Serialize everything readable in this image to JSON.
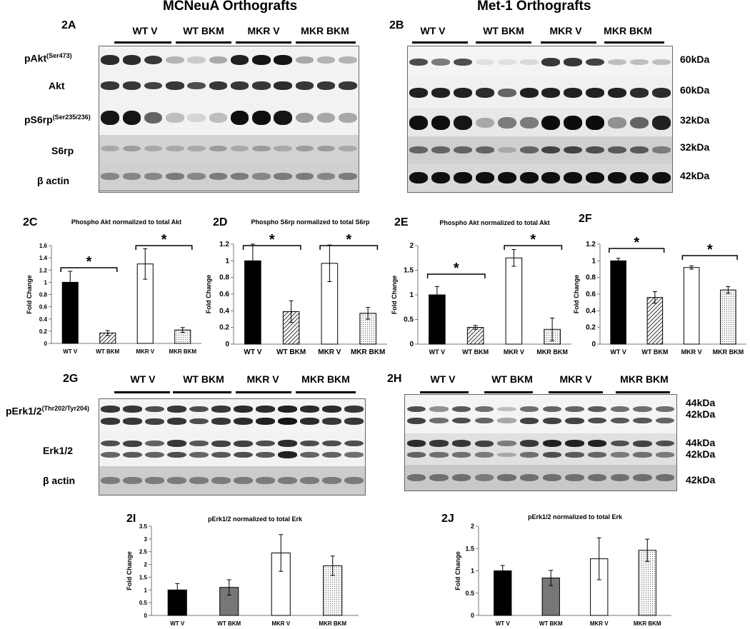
{
  "titles": {
    "left": "MCNeuA Orthografts",
    "right": "Met-1 Orthografts"
  },
  "panels": {
    "a": "2A",
    "b": "2B",
    "c": "2C",
    "d": "2D",
    "e": "2E",
    "f": "2F",
    "g": "2G",
    "h": "2H",
    "i": "2I",
    "j": "2J"
  },
  "groups": [
    "WT V",
    "WT BKM",
    "MKR V",
    "MKR BKM"
  ],
  "blot_2a": {
    "rows": [
      {
        "label": "pAkt",
        "sup": "(Ser473)"
      },
      {
        "label": "Akt",
        "sup": ""
      },
      {
        "label": "pS6rp",
        "sup": "(Ser235/236)"
      },
      {
        "label": "S6rp",
        "sup": ""
      },
      {
        "label": "β actin",
        "sup": ""
      }
    ]
  },
  "blot_2b": {
    "kda": [
      "60kDa",
      "60kDa",
      "32kDa",
      "32kDa",
      "42kDa"
    ]
  },
  "blot_2g": {
    "rows": [
      {
        "label": "pErk1/2",
        "sup": "(Thr202/Tyr204)"
      },
      {
        "label": "Erk1/2",
        "sup": ""
      },
      {
        "label": "β actin",
        "sup": ""
      }
    ]
  },
  "blot_2h": {
    "kda": [
      "44kDa",
      "42kDa",
      "44kDa",
      "42kDa",
      "42kDa"
    ]
  },
  "chart_data": [
    {
      "id": "2C",
      "type": "bar",
      "title": "Phospho Akt normalized to total Akt",
      "ylabel": "Fold Change",
      "categories": [
        "WT V",
        "WT BKM",
        "MKR V",
        "MKR BKM"
      ],
      "values": [
        1.0,
        0.17,
        1.3,
        0.22
      ],
      "errors": [
        0.18,
        0.04,
        0.25,
        0.04
      ],
      "ylim": [
        0,
        1.6
      ],
      "yticks": [
        "0",
        "0.2",
        "0.4",
        "0.6",
        "0.8",
        "1",
        "1.2",
        "1.4",
        "1.6"
      ],
      "significance": "*"
    },
    {
      "id": "2D",
      "type": "bar",
      "title": "Phospho S6rp normalized to total S6rp",
      "ylabel": "Fold Change",
      "categories": [
        "WT V",
        "WT BKM",
        "MKR V",
        "MKR BKM"
      ],
      "values": [
        1.0,
        0.39,
        0.97,
        0.37
      ],
      "errors": [
        0.2,
        0.13,
        0.22,
        0.07
      ],
      "ylim": [
        0,
        1.2
      ],
      "yticks": [
        "0",
        "0.2",
        "0.4",
        "0.6",
        "0.8",
        "1",
        "1.2"
      ],
      "significance": "*"
    },
    {
      "id": "2E",
      "type": "bar",
      "title": "Phospho Akt normalized to total Akt",
      "ylabel": "Fold Change",
      "categories": [
        "WT V",
        "WT BKM",
        "MKR V",
        "MKR BKM"
      ],
      "values": [
        1.0,
        0.34,
        1.75,
        0.3
      ],
      "errors": [
        0.17,
        0.04,
        0.17,
        0.23
      ],
      "ylim": [
        0,
        2
      ],
      "yticks": [
        "0",
        "0.5",
        "1",
        "1.5",
        "2"
      ],
      "significance": "*"
    },
    {
      "id": "2F",
      "type": "bar",
      "title": "",
      "ylabel": "Fold Change",
      "categories": [
        "WT V",
        "WT BKM",
        "MKR V",
        "MKR BKM"
      ],
      "values": [
        1.0,
        0.56,
        0.92,
        0.65
      ],
      "errors": [
        0.03,
        0.07,
        0.02,
        0.04
      ],
      "ylim": [
        0,
        1.2
      ],
      "yticks": [
        "0",
        "0.2",
        "0.4",
        "0.6",
        "0.8",
        "1",
        "1.2"
      ],
      "significance": "*"
    },
    {
      "id": "2I",
      "type": "bar",
      "title": "pErk1/2 normalized to total Erk",
      "ylabel": "Fold Change",
      "categories": [
        "WT V",
        "WT BKM",
        "MKR V",
        "MKR BKM"
      ],
      "values": [
        1.0,
        1.1,
        2.45,
        1.95
      ],
      "errors": [
        0.25,
        0.3,
        0.72,
        0.38
      ],
      "ylim": [
        0,
        3.5
      ],
      "yticks": [
        "0",
        "0.5",
        "1",
        "1.5",
        "2",
        "2.5",
        "3",
        "3.5"
      ]
    },
    {
      "id": "2J",
      "type": "bar",
      "title": "pErk1/2 normalized to total Erk",
      "ylabel": "Fold Change",
      "categories": [
        "WT V",
        "WT BKM",
        "MKR V",
        "MKR BKM"
      ],
      "values": [
        1.0,
        0.84,
        1.27,
        1.46
      ],
      "errors": [
        0.12,
        0.17,
        0.47,
        0.25
      ],
      "ylim": [
        0,
        2
      ],
      "yticks": [
        "0",
        "0.5",
        "1",
        "1.5",
        "2"
      ]
    }
  ]
}
